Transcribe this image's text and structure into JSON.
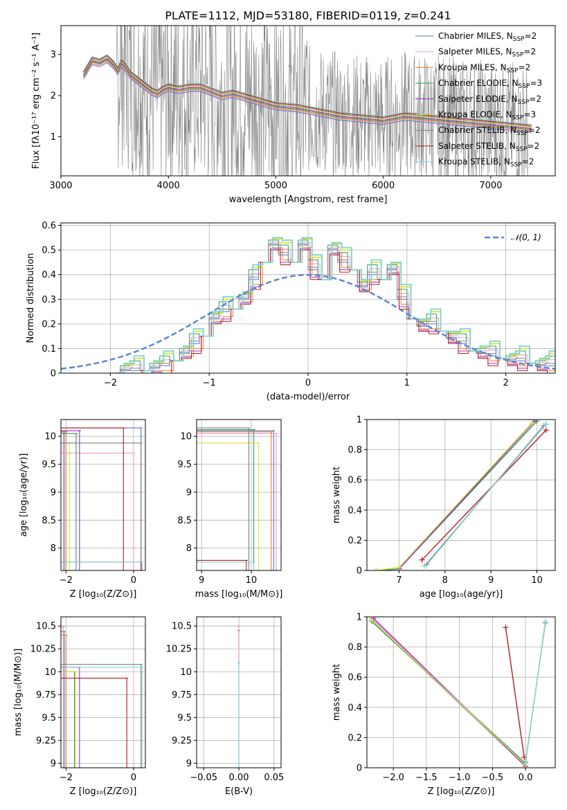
{
  "figure_title": "PLATE=1112, MJD=53180, FIBERID=0119, z=0.241",
  "legend": {
    "spectrum": [
      {
        "prefix": "Chabrier MILES, N",
        "sub": "SSP",
        "suffix": "=2",
        "color": "#4e78c4"
      },
      {
        "prefix": "Salpeter MILES, N",
        "sub": "SSP",
        "suffix": "=2",
        "color": "#e89ac8"
      },
      {
        "prefix": "Kroupa MILES, N",
        "sub": "SSP",
        "suffix": "=2",
        "color": "#ef7b2a"
      },
      {
        "prefix": "Chabrier ELODIE, N",
        "sub": "SSP",
        "suffix": "=3",
        "color": "#2e9c5a"
      },
      {
        "prefix": "Salpeter ELODIE, N",
        "sub": "SSP",
        "suffix": "=2",
        "color": "#a22bd2"
      },
      {
        "prefix": "Kroupa ELODIE, N",
        "sub": "SSP",
        "suffix": "=3",
        "color": "#d8e23a"
      },
      {
        "prefix": "Chabrier STELIB, N",
        "sub": "SSP",
        "suffix": "=2",
        "color": "#7f7f7f"
      },
      {
        "prefix": "Salpeter STELIB, N",
        "sub": "SSP",
        "suffix": "=2",
        "color": "#b31b1b"
      },
      {
        "prefix": "Kroupa STELIB, N",
        "sub": "SSP",
        "suffix": "=2",
        "color": "#7fd3d3"
      }
    ],
    "gauss": "𝒩(0, 1)"
  },
  "chart_data": [
    {
      "id": "spectrum",
      "type": "line",
      "xlabel": "wavelength [Angstrom, rest frame]",
      "ylabel": "Flux [fλ10⁻¹⁷ erg cm⁻² s⁻¹ A⁻¹]",
      "xlim": [
        3000,
        7600
      ],
      "ylim": [
        0.05,
        3.7
      ],
      "xticks": [
        3000,
        4000,
        5000,
        6000,
        7000
      ],
      "yticks": [
        1,
        2,
        3
      ],
      "data_range": [
        3210,
        7380
      ],
      "model_x": [
        3210,
        3290,
        3360,
        3430,
        3490,
        3530,
        3560,
        3600,
        3650,
        3700,
        3750,
        3800,
        3850,
        3900,
        3950,
        4000,
        4100,
        4200,
        4300,
        4400,
        4500,
        4600,
        4800,
        5000,
        5200,
        5400,
        5600,
        5800,
        6000,
        6200,
        6400,
        6600,
        6800,
        7000,
        7200,
        7380
      ],
      "model_y": [
        2.5,
        2.85,
        2.8,
        2.9,
        2.75,
        2.6,
        2.8,
        2.7,
        2.5,
        2.4,
        2.3,
        2.2,
        2.1,
        2.05,
        2.15,
        2.2,
        2.15,
        2.2,
        2.2,
        2.1,
        2.0,
        2.05,
        1.9,
        1.75,
        1.7,
        1.6,
        1.5,
        1.45,
        1.4,
        1.5,
        1.45,
        1.4,
        1.35,
        1.3,
        1.25,
        1.2
      ]
    },
    {
      "id": "residuals",
      "type": "line",
      "xlabel": "(data-model)/error",
      "ylabel": "Normed distribution",
      "xlim": [
        -2.5,
        2.5
      ],
      "ylim": [
        0,
        0.61
      ],
      "xticks": [
        -2,
        -1,
        0,
        1,
        2
      ],
      "yticks": [
        0.0,
        0.1,
        0.2,
        0.3,
        0.4,
        0.5,
        0.6
      ],
      "bin_edges": [
        -2.0,
        -1.9,
        -1.8,
        -1.7,
        -1.6,
        -1.5,
        -1.4,
        -1.3,
        -1.2,
        -1.1,
        -1.0,
        -0.9,
        -0.8,
        -0.7,
        -0.6,
        -0.5,
        -0.4,
        -0.3,
        -0.2,
        -0.1,
        0.0,
        0.1,
        0.2,
        0.3,
        0.4,
        0.5,
        0.6,
        0.7,
        0.8,
        0.9,
        1.0,
        1.1,
        1.2,
        1.3,
        1.4,
        1.5,
        1.6,
        1.7,
        1.8,
        1.9,
        2.0,
        2.1,
        2.2,
        2.3,
        2.4,
        2.5
      ],
      "hist": [
        0.0,
        0.01,
        0.01,
        0.01,
        0.02,
        0.03,
        0.05,
        0.08,
        0.12,
        0.15,
        0.22,
        0.25,
        0.26,
        0.3,
        0.38,
        0.45,
        0.52,
        0.48,
        0.45,
        0.52,
        0.42,
        0.38,
        0.5,
        0.45,
        0.42,
        0.35,
        0.4,
        0.38,
        0.42,
        0.3,
        0.22,
        0.19,
        0.2,
        0.17,
        0.14,
        0.12,
        0.09,
        0.08,
        0.07,
        0.06,
        0.05,
        0.05,
        0.04,
        0.03,
        0.03
      ],
      "series_offsets": [
        0.0,
        0.012,
        -0.01,
        0.02,
        -0.015,
        0.025,
        0.005,
        -0.02,
        0.03
      ],
      "gauss_curve": {
        "mu": 0,
        "sigma": 1,
        "peak": 0.399
      }
    },
    {
      "id": "age_vs_Z",
      "type": "scatter",
      "xlabel": "Z [log₁₀(Z/Z⊙)]",
      "ylabel": "age  [log₁₀(age/yr)]",
      "xlim": [
        -2.15,
        0.35
      ],
      "ylim": [
        7.6,
        10.3
      ],
      "xticks": [
        -2,
        0
      ],
      "yticks": [
        8.0,
        8.5,
        9.0,
        9.5,
        10.0
      ],
      "points": [
        {
          "series": "Chabrier MILES",
          "x": 0.22,
          "y": 10.15
        },
        {
          "series": "Chabrier MILES",
          "x": -2.05,
          "y": 10.1
        },
        {
          "series": "Salpeter MILES",
          "x": -2.08,
          "y": 10.08
        },
        {
          "series": "Salpeter MILES",
          "x": 0.0,
          "y": 9.7
        },
        {
          "series": "Kroupa MILES",
          "x": -2.0,
          "y": 10.08
        },
        {
          "series": "Chabrier ELODIE",
          "x": -1.7,
          "y": 10.05
        },
        {
          "series": "Salpeter ELODIE",
          "x": -1.6,
          "y": 10.1
        },
        {
          "series": "Kroupa ELODIE",
          "x": -1.9,
          "y": 9.88
        },
        {
          "series": "Chabrier STELIB",
          "x": 0.22,
          "y": 9.88
        },
        {
          "series": "Salpeter STELIB",
          "x": -0.3,
          "y": 10.15
        },
        {
          "series": "Salpeter STELIB",
          "x": 0.22,
          "y": 7.75
        },
        {
          "series": "Kroupa STELIB",
          "x": 0.25,
          "y": 7.75
        }
      ]
    },
    {
      "id": "age_vs_mass",
      "type": "scatter",
      "xlabel": "mass [log₁₀(M/M⊙)]",
      "ylabel": "",
      "xlim": [
        8.9,
        10.6
      ],
      "ylim": [
        7.6,
        10.3
      ],
      "xticks": [
        9,
        10
      ],
      "yticks": [
        8.0,
        8.5,
        9.0,
        9.5,
        10.0
      ],
      "points": [
        {
          "series": "Chabrier MILES",
          "x": 10.45,
          "y": 10.1
        },
        {
          "series": "Salpeter MILES",
          "x": 10.5,
          "y": 10.05
        },
        {
          "series": "Kroupa MILES",
          "x": 10.4,
          "y": 10.08
        },
        {
          "series": "Chabrier ELODIE",
          "x": 10.05,
          "y": 10.12
        },
        {
          "series": "Kroupa ELODIE",
          "x": 10.15,
          "y": 9.88
        },
        {
          "series": "Chabrier STELIB",
          "x": 9.95,
          "y": 10.15
        },
        {
          "series": "Salpeter STELIB",
          "x": 9.9,
          "y": 7.78
        },
        {
          "series": "Kroupa STELIB",
          "x": 10.05,
          "y": 7.75
        }
      ]
    },
    {
      "id": "massweight_vs_age",
      "type": "line",
      "xlabel": "age  [log₁₀(age/yr)]",
      "ylabel": "mass weight",
      "xlim": [
        6.3,
        10.4
      ],
      "ylim": [
        0,
        1.0
      ],
      "xticks": [
        7,
        8,
        9,
        10
      ],
      "yticks": [
        0.0,
        0.2,
        0.4,
        0.6,
        0.8,
        1.0
      ],
      "series": [
        {
          "name": "Chabrier MILES",
          "x": [
            7.55,
            10.2
          ],
          "y": [
            0.03,
            0.97
          ]
        },
        {
          "name": "Salpeter MILES",
          "x": [
            7.0,
            9.95
          ],
          "y": [
            0.01,
            0.99
          ]
        },
        {
          "name": "Kroupa MILES",
          "x": [
            7.0,
            10.0
          ],
          "y": [
            0.01,
            0.99
          ]
        },
        {
          "name": "Chabrier ELODIE",
          "x": [
            6.5,
            7.0,
            10.0
          ],
          "y": [
            0.0,
            0.01,
            0.99
          ]
        },
        {
          "name": "Salpeter ELODIE",
          "x": [
            7.0,
            9.95
          ],
          "y": [
            0.01,
            0.99
          ]
        },
        {
          "name": "Kroupa ELODIE",
          "x": [
            6.5,
            7.0,
            9.9
          ],
          "y": [
            0.0,
            0.02,
            0.98
          ]
        },
        {
          "name": "Chabrier STELIB",
          "x": [
            7.6,
            10.15
          ],
          "y": [
            0.04,
            0.96
          ]
        },
        {
          "name": "Salpeter STELIB",
          "x": [
            7.5,
            10.2
          ],
          "y": [
            0.07,
            0.93
          ]
        },
        {
          "name": "Kroupa STELIB",
          "x": [
            7.55,
            10.2
          ],
          "y": [
            0.03,
            0.97
          ]
        }
      ]
    },
    {
      "id": "mass_vs_Z",
      "type": "scatter",
      "xlabel": "Z [log₁₀(Z/Z⊙)]",
      "ylabel": "mass [log₁₀(M/M⊙)]",
      "xlim": [
        -2.15,
        0.35
      ],
      "ylim": [
        8.95,
        10.6
      ],
      "xticks": [
        -2,
        0
      ],
      "yticks": [
        9.0,
        9.25,
        9.5,
        9.75,
        10.0,
        10.25,
        10.5
      ],
      "points": [
        {
          "series": "Chabrier MILES",
          "x": -2.05,
          "y": 10.44
        },
        {
          "series": "Salpeter MILES",
          "x": -2.08,
          "y": 10.49
        },
        {
          "series": "Kroupa MILES",
          "x": -2.0,
          "y": 10.4
        },
        {
          "series": "Chabrier ELODIE",
          "x": -1.75,
          "y": 10.0
        },
        {
          "series": "Salpeter ELODIE",
          "x": -1.6,
          "y": 10.05
        },
        {
          "series": "Kroupa ELODIE",
          "x": -1.72,
          "y": 10.0
        },
        {
          "series": "Chabrier STELIB",
          "x": 0.22,
          "y": 10.08
        },
        {
          "series": "Salpeter STELIB",
          "x": -0.2,
          "y": 9.93
        },
        {
          "series": "Kroupa STELIB",
          "x": 0.25,
          "y": 10.05
        }
      ]
    },
    {
      "id": "mass_vs_EBV",
      "type": "scatter",
      "xlabel": "E(B-V)",
      "ylabel": "",
      "xlim": [
        -0.06,
        0.06
      ],
      "ylim": [
        8.95,
        10.6
      ],
      "xticks": [
        -0.05,
        0.0,
        0.05
      ],
      "xtick_labels": [
        "−0.05",
        "0.00",
        "0.05"
      ],
      "yticks": [
        9.0,
        9.25,
        9.5,
        9.75,
        10.0,
        10.25,
        10.5
      ],
      "points": [
        {
          "series": "Chabrier MILES",
          "x": 0.0,
          "y": 10.45
        },
        {
          "series": "Salpeter MILES",
          "x": 0.0,
          "y": 10.5
        },
        {
          "series": "Kroupa STELIB",
          "x": 0.0,
          "y": 10.1
        }
      ]
    },
    {
      "id": "massweight_vs_Z",
      "type": "line",
      "xlabel": "Z [log₁₀(Z/Z⊙)]",
      "ylabel": "mass weight",
      "xlim": [
        -2.4,
        0.45
      ],
      "ylim": [
        0,
        1.0
      ],
      "xticks": [
        -2.0,
        -1.5,
        -1.0,
        -0.5,
        0.0
      ],
      "xtick_labels": [
        "−2.0",
        "−1.5",
        "−1.0",
        "−0.5",
        "0.0"
      ],
      "yticks": [
        0.0,
        0.2,
        0.4,
        0.6,
        0.8,
        1.0
      ],
      "series": [
        {
          "name": "Chabrier MILES",
          "x": [
            -2.33,
            0.0
          ],
          "y": [
            0.98,
            0.01
          ]
        },
        {
          "name": "Salpeter MILES",
          "x": [
            -2.33,
            0.0
          ],
          "y": [
            0.99,
            0.01
          ]
        },
        {
          "name": "Kroupa MILES",
          "x": [
            -2.3,
            0.0
          ],
          "y": [
            0.99,
            0.01
          ]
        },
        {
          "name": "Chabrier ELODIE",
          "x": [
            -2.33,
            0.0
          ],
          "y": [
            0.97,
            0.03
          ]
        },
        {
          "name": "Salpeter ELODIE",
          "x": [
            -2.3,
            0.0
          ],
          "y": [
            0.99,
            0.01
          ]
        },
        {
          "name": "Kroupa ELODIE",
          "x": [
            -2.33,
            0.0
          ],
          "y": [
            0.98,
            0.02
          ]
        },
        {
          "name": "Chabrier STELIB",
          "x": [
            0.0,
            0.3
          ],
          "y": [
            0.04,
            0.96
          ]
        },
        {
          "name": "Salpeter STELIB",
          "x": [
            -0.3,
            -0.02
          ],
          "y": [
            0.93,
            0.07
          ]
        },
        {
          "name": "Kroupa STELIB",
          "x": [
            0.0,
            0.3
          ],
          "y": [
            0.03,
            0.97
          ]
        }
      ]
    }
  ]
}
